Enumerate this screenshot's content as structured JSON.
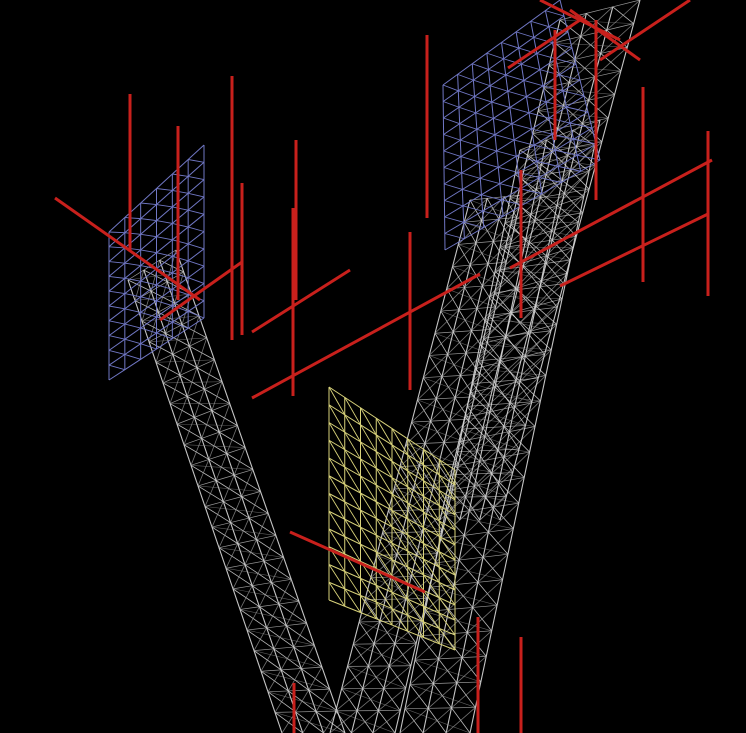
{
  "scene": {
    "background": "#000000",
    "colors": {
      "truss": "#d9d9d9",
      "truss_shade": "#9a9a9a",
      "panel_blue": "#7077c4",
      "panel_yellow": "#d8d27a",
      "member_red": "#c8201c"
    },
    "panels": [
      {
        "id": "panel-blue-left",
        "color_key": "panel_blue",
        "rows": 10,
        "cols": 6
      },
      {
        "id": "panel-blue-top",
        "color_key": "panel_blue",
        "rows": 10,
        "cols": 8
      },
      {
        "id": "panel-yellow-center",
        "color_key": "panel_yellow",
        "rows": 12,
        "cols": 8
      }
    ],
    "trusses": [
      {
        "id": "truss-left-leg",
        "bays": 22
      },
      {
        "id": "truss-right-leg-a",
        "bays": 24
      },
      {
        "id": "truss-right-leg-b",
        "bays": 24
      },
      {
        "id": "truss-right-leg-c",
        "bays": 22
      }
    ]
  }
}
